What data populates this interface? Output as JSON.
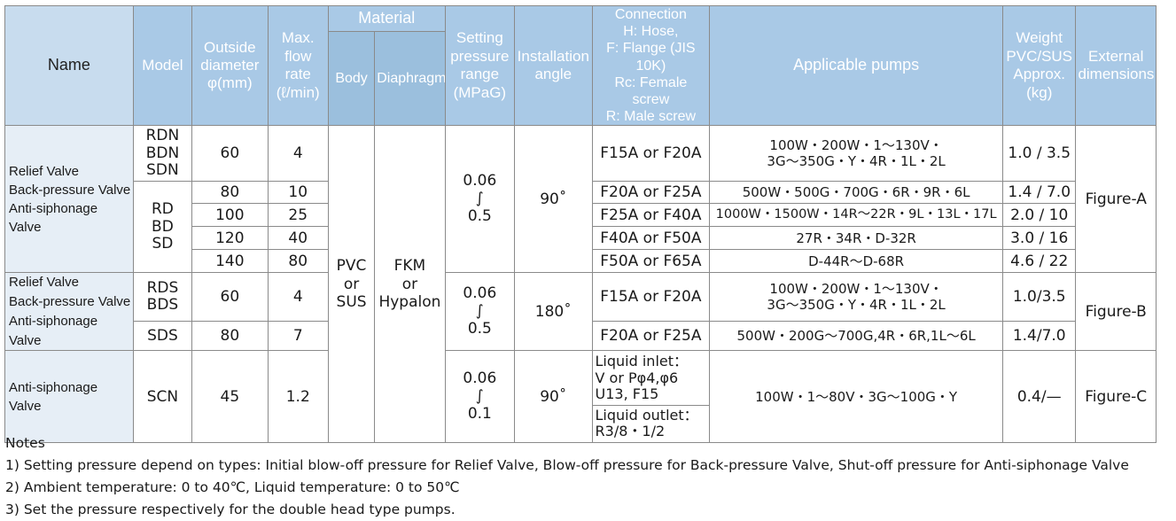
{
  "header": {
    "name": "Name",
    "model": "Model",
    "outside_diameter": [
      "Outside",
      "diameter",
      "φ(mm)"
    ],
    "max_flow_rate": [
      "Max.",
      "flow rate",
      "(ℓ/min)"
    ],
    "material": "Material",
    "body": "Body",
    "diaphragm": "Diaphragm",
    "setting_pressure": [
      "Setting",
      "pressure",
      "range",
      "(MPaG)"
    ],
    "installation_angle": [
      "Installation",
      "angle"
    ],
    "connection": [
      "Connection",
      "H: Hose,",
      "F: Flange (JIS 10K)",
      "Rc: Female screw",
      "R: Male screw"
    ],
    "applicable_pumps": "Applicable pumps",
    "weight": [
      "Weight",
      "PVC/SUS",
      "Approx.",
      "(kg)"
    ],
    "external_dimensions": [
      "External",
      "dimensions"
    ]
  },
  "body_material": [
    "PVC",
    "or",
    "SUS"
  ],
  "diaphragm_material": [
    "FKM",
    "or",
    "Hypalon"
  ],
  "group_a": {
    "names": [
      "Relief Valve",
      "Back-pressure Valve",
      "Anti-siphonage Valve"
    ],
    "models_1": [
      "RDN",
      "BDN",
      "SDN"
    ],
    "models_2": [
      "RD",
      "BD",
      "SD"
    ],
    "pressure": [
      "0.06",
      "∫",
      "0.5"
    ],
    "angle": "90˚",
    "figure": "Figure-A",
    "rows": [
      {
        "od": "60",
        "flow": "4",
        "conn": "F15A or F20A",
        "pumps": [
          "100W・200W・1〜130V・",
          "3G〜350G・Y・4R・1L・2L"
        ],
        "weight": "1.0 / 3.5"
      },
      {
        "od": "80",
        "flow": "10",
        "conn": "F20A or F25A",
        "pumps": [
          "500W・500G・700G・6R・9R・6L"
        ],
        "weight": "1.4 / 7.0"
      },
      {
        "od": "100",
        "flow": "25",
        "conn": "F25A or F40A",
        "pumps": [
          "1000W・1500W・14R〜22R・9L・13L・17L"
        ],
        "weight": "2.0 / 10"
      },
      {
        "od": "120",
        "flow": "40",
        "conn": "F40A or F50A",
        "pumps": [
          "27R・34R・D-32R"
        ],
        "weight": "3.0 / 16"
      },
      {
        "od": "140",
        "flow": "80",
        "conn": "F50A or F65A",
        "pumps": [
          "D-44R〜D-68R"
        ],
        "weight": "4.6 / 22"
      }
    ]
  },
  "group_b": {
    "names": [
      "Relief Valve",
      "Back-pressure Valve",
      "Anti-siphonage Valve"
    ],
    "models_1": [
      "RDS",
      "BDS"
    ],
    "models_2": [
      "SDS"
    ],
    "pressure": [
      "0.06",
      "∫",
      "0.5"
    ],
    "angle": "180˚",
    "figure": "Figure-B",
    "rows": [
      {
        "od": "60",
        "flow": "4",
        "conn": "F15A or F20A",
        "pumps": [
          "100W・200W・1〜130V・",
          "3G〜350G・Y・4R・1L・2L"
        ],
        "weight": "1.0/3.5"
      },
      {
        "od": "80",
        "flow": "7",
        "conn": "F20A or F25A",
        "pumps": [
          "500W・200G〜700G,4R・6R,1L〜6L"
        ],
        "weight": "1.4/7.0"
      }
    ]
  },
  "group_c": {
    "name": "Anti-siphonage Valve",
    "model": "SCN",
    "od": "45",
    "flow": "1.2",
    "pressure": [
      "0.06",
      "∫",
      "0.1"
    ],
    "angle": "90˚",
    "conn_inlet": [
      "Liquid inlet：",
      "V or Pφ4,φ6",
      "U13, F15"
    ],
    "conn_outlet": [
      "Liquid outlet：",
      "R3/8・1/2"
    ],
    "pumps": "100W・1〜80V・3G〜100G・Y",
    "weight": "0.4/—",
    "figure": "Figure-C"
  },
  "notes": {
    "title": "Notes",
    "items": [
      "1) Setting pressure depend on types: Initial blow-off pressure for Relief Valve, Blow-off pressure for Back-pressure Valve, Shut-off pressure for Anti-siphonage Valve",
      "2) Ambient temperature: 0 to 40℃, Liquid temperature: 0 to 50℃",
      "3) Set the pressure respectively for the double head type pumps."
    ]
  }
}
